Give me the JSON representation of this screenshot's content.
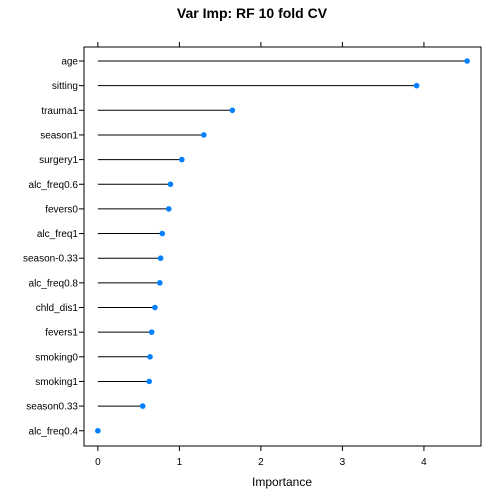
{
  "chart_data": {
    "type": "dotplot",
    "title": "Var Imp: RF 10 fold CV",
    "xlabel": "Importance",
    "ylabel": "",
    "xlim": [
      -0.17,
      4.7
    ],
    "xticks": [
      0,
      1,
      2,
      3,
      4
    ],
    "grid": false,
    "legend": "none",
    "colors": {
      "point": "#0080ff",
      "line": "#000000",
      "frame": "#000000"
    },
    "categories": [
      "age",
      "sitting",
      "trauma1",
      "season1",
      "surgery1",
      "alc_freq0.6",
      "fevers0",
      "alc_freq1",
      "season-0.33",
      "alc_freq0.8",
      "chld_dis1",
      "fevers1",
      "smoking0",
      "smoking1",
      "season0.33",
      "alc_freq0.4"
    ],
    "values": [
      4.53,
      3.91,
      1.65,
      1.3,
      1.03,
      0.89,
      0.87,
      0.79,
      0.77,
      0.76,
      0.7,
      0.66,
      0.64,
      0.63,
      0.55,
      0.0
    ]
  }
}
